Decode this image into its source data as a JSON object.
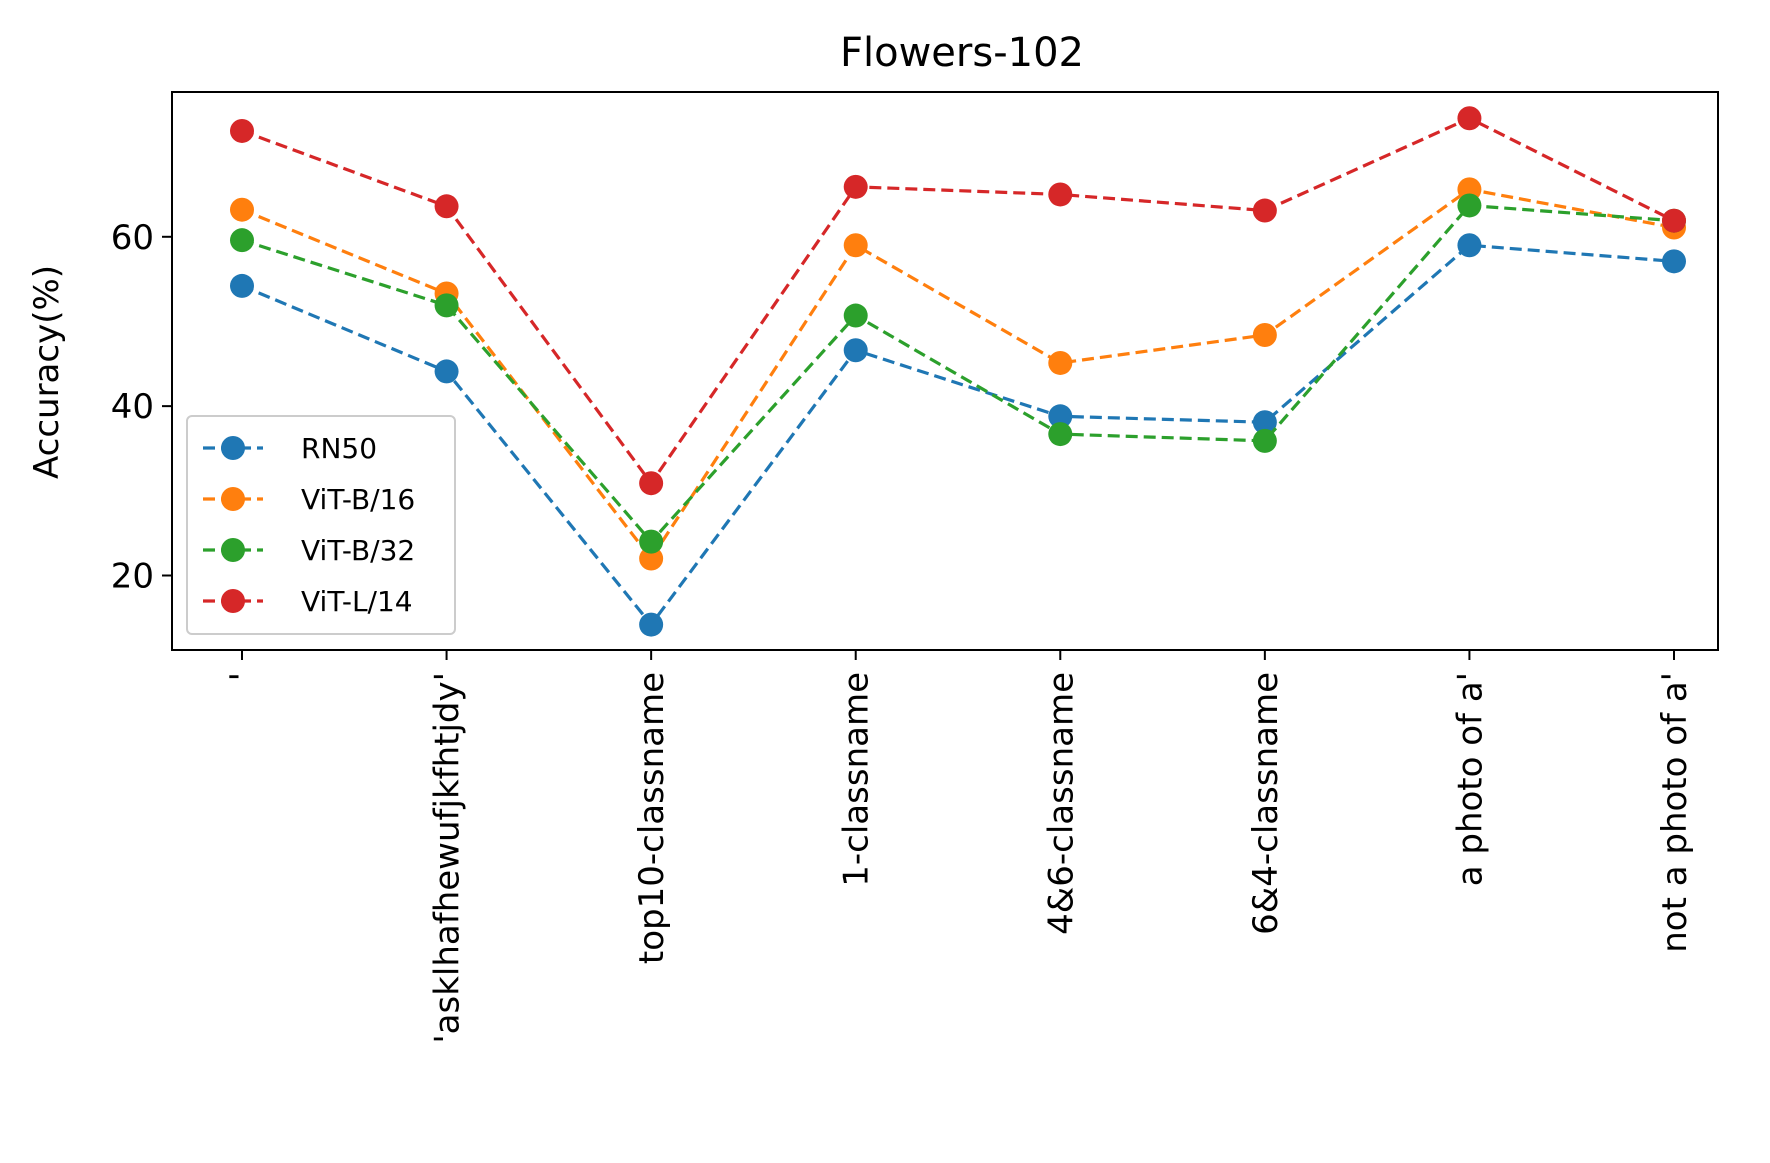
{
  "chart_data": {
    "type": "line",
    "title": "Flowers-102",
    "xlabel": "",
    "ylabel": "Accuracy(%)",
    "categories": [
      "'",
      "'asklhafhewufjkfhtjdy'",
      "top10-classname",
      "1-classname",
      "4&6-classname",
      "6&4-classname",
      "a photo of a'",
      "not a photo of a'"
    ],
    "ylim": [
      11.2,
      77.1
    ],
    "yticks": [
      20,
      40,
      60
    ],
    "grid": false,
    "legend_position": "lower-left",
    "series": [
      {
        "name": "RN50",
        "color": "#1f77b4",
        "values": [
          54.2,
          44.1,
          14.2,
          46.6,
          38.8,
          38.1,
          59.0,
          57.1
        ]
      },
      {
        "name": "ViT-B/16",
        "color": "#ff7f0e",
        "values": [
          63.2,
          53.3,
          22.0,
          59.0,
          45.1,
          48.4,
          65.6,
          61.1
        ]
      },
      {
        "name": "ViT-B/32",
        "color": "#2ca02c",
        "values": [
          59.6,
          51.9,
          24.0,
          50.7,
          36.7,
          35.9,
          63.7,
          61.9
        ]
      },
      {
        "name": "ViT-L/14",
        "color": "#d62728",
        "values": [
          72.5,
          63.6,
          30.9,
          65.9,
          65.0,
          63.1,
          74.0,
          61.9
        ]
      }
    ]
  }
}
